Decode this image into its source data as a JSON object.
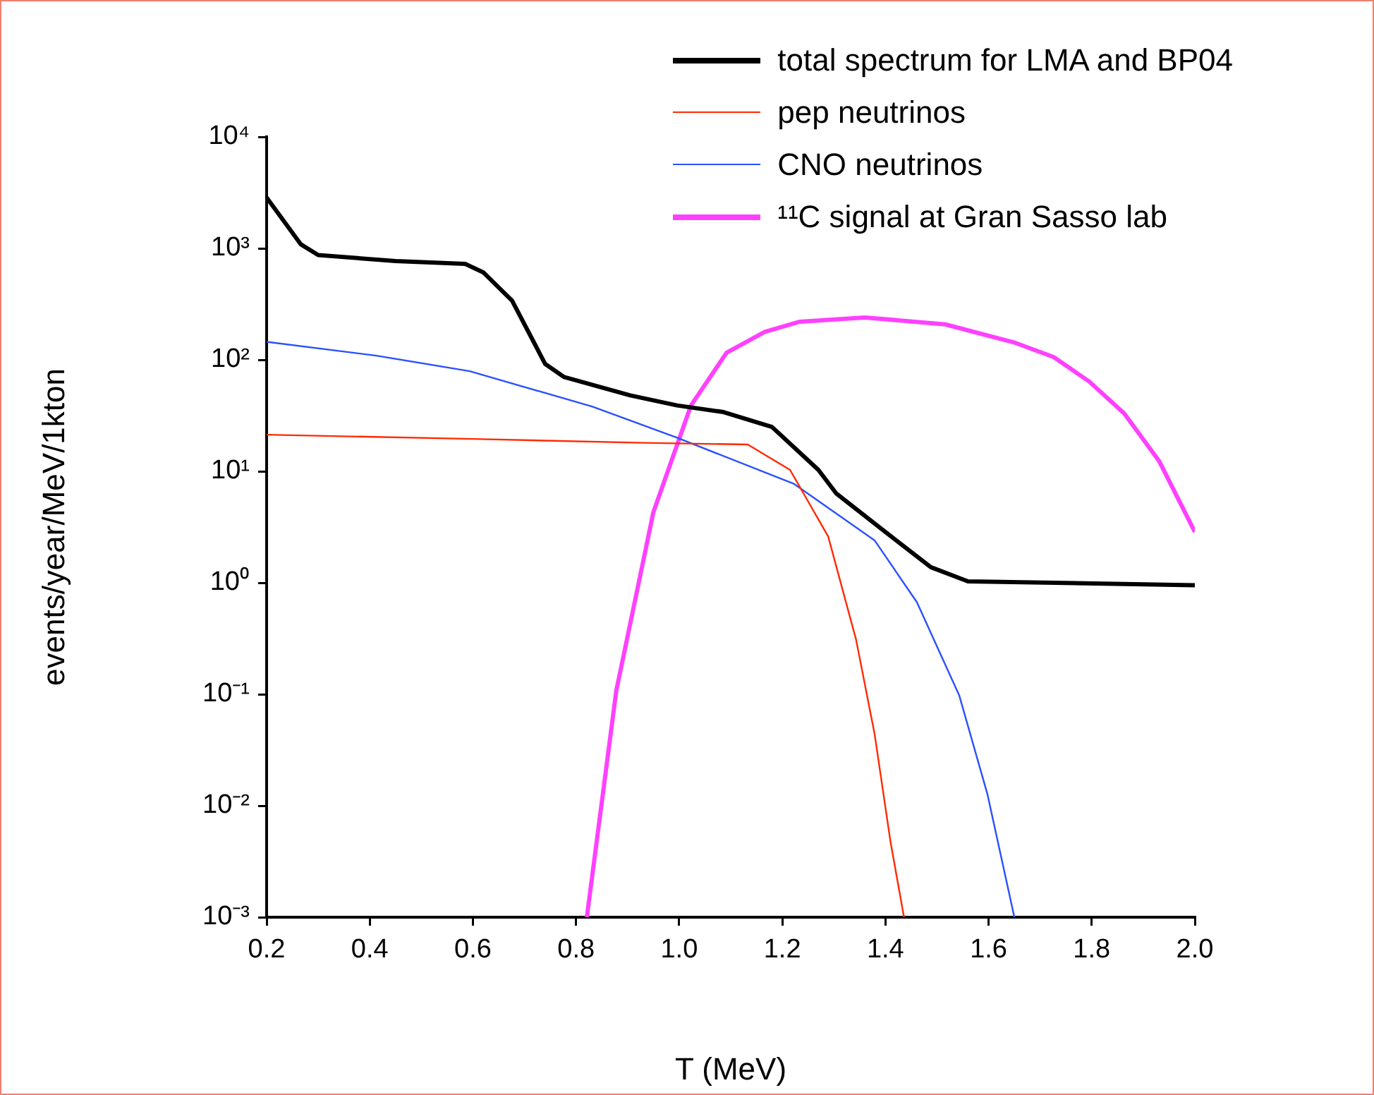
{
  "chart_data": {
    "type": "line",
    "xlabel": "T (MeV)",
    "ylabel": "events/year/MeV/1kton",
    "log": "y",
    "legend": "top right",
    "xlim": [
      0.2,
      2.0
    ],
    "xticks": [
      {
        "value": 0.2,
        "label": "0.2"
      },
      {
        "value": 0.4,
        "label": "0.4"
      },
      {
        "value": 0.6,
        "label": "0.6"
      },
      {
        "value": 0.8,
        "label": "0.8"
      },
      {
        "value": 1.0,
        "label": "1.0"
      },
      {
        "value": 1.2,
        "label": "1.2"
      },
      {
        "value": 1.4,
        "label": "1.4"
      },
      {
        "value": 1.6,
        "label": "1.6"
      },
      {
        "value": 1.8,
        "label": "1.8"
      },
      {
        "value": 2.0,
        "label": "2.0"
      }
    ],
    "ylim": [
      0.001,
      10000
    ],
    "yticks": [
      {
        "value": 0.001,
        "label": "10⁻³"
      },
      {
        "value": 0.01,
        "label": "10⁻²"
      },
      {
        "value": 0.1,
        "label": "10⁻¹"
      },
      {
        "value": 1,
        "label": "10⁰"
      },
      {
        "value": 10,
        "label": "10¹"
      },
      {
        "value": 100,
        "label": "10²"
      },
      {
        "value": 1000,
        "label": "10³"
      },
      {
        "value": 10000,
        "label": "10⁴"
      }
    ],
    "series": [
      {
        "name": "total spectrum for LMA and BP04",
        "color": "#000000",
        "x": [
          0.2,
          0.266,
          0.3,
          0.45,
          0.585,
          0.62,
          0.676,
          0.74,
          0.777,
          0.905,
          0.996,
          1.086,
          1.18,
          1.27,
          1.305,
          1.398,
          1.488,
          1.56,
          2.0
        ],
        "values": [
          2860,
          1090,
          870,
          770,
          725,
          610,
          340,
          92,
          70,
          48,
          39,
          34,
          25,
          10.3,
          6.3,
          2.9,
          1.38,
          1.03,
          0.95
        ]
      },
      {
        "name": "pep neutrinos",
        "color": "#ff2a00",
        "x": [
          0.2,
          0.6,
          0.93,
          1.133,
          1.215,
          1.289,
          1.343,
          1.379,
          1.41,
          1.436
        ],
        "values": [
          21.3,
          19.5,
          18,
          17.4,
          10.3,
          2.6,
          0.31,
          0.044,
          0.0047,
          0.001
        ]
      },
      {
        "name": "CNO neutrinos",
        "color": "#2a50ff",
        "x": [
          0.2,
          0.413,
          0.594,
          0.832,
          0.996,
          1.223,
          1.379,
          1.461,
          1.543,
          1.598,
          1.65
        ],
        "values": [
          145,
          109,
          79,
          38,
          20,
          7.7,
          2.4,
          0.67,
          0.098,
          0.0126,
          0.001
        ]
      },
      {
        "name": "¹¹C signal at Gran Sasso lab",
        "color": "#ff40ff",
        "x": [
          0.821,
          0.878,
          0.95,
          1.023,
          1.092,
          1.166,
          1.234,
          1.36,
          1.516,
          1.652,
          1.726,
          1.795,
          1.863,
          1.931,
          2.0
        ],
        "values": [
          0.001,
          0.107,
          4.3,
          39,
          116,
          178,
          220,
          240,
          208,
          142,
          106,
          64,
          33,
          12.3,
          2.86
        ]
      }
    ]
  }
}
